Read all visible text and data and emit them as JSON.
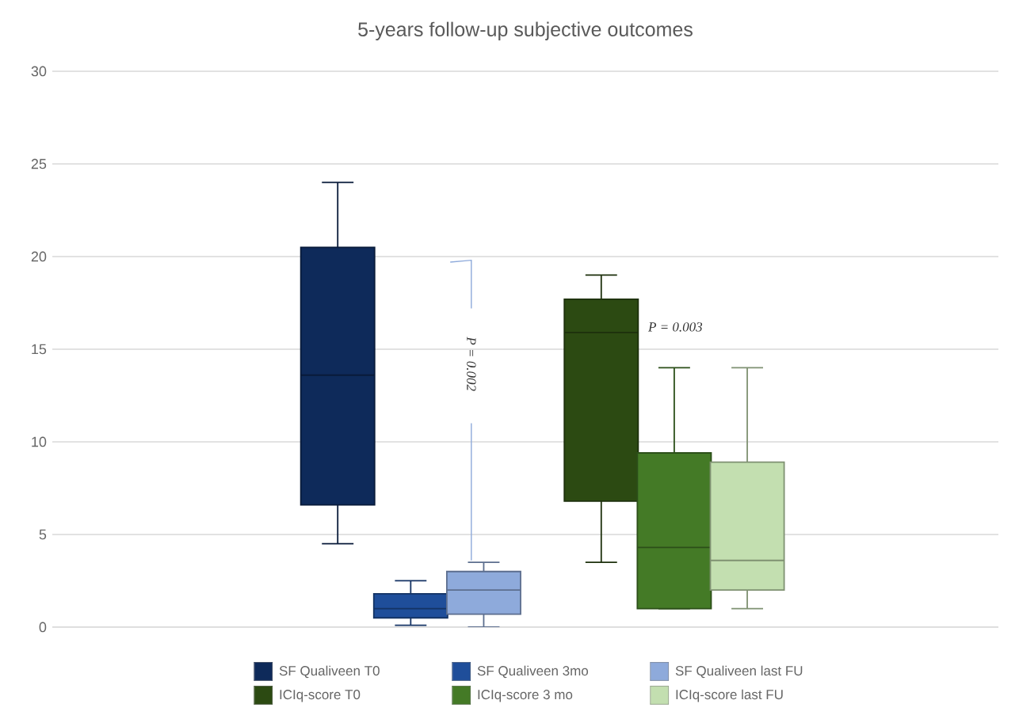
{
  "chart_data": {
    "type": "box",
    "title": "5-years follow-up subjective outcomes",
    "categories": [
      null,
      null
    ],
    "series": [
      {
        "name": "SF Qualiveen T0",
        "color": "#0e2a5a",
        "boxes": [
          {
            "low": 4.5,
            "q1": 6.6,
            "median": 13.6,
            "q3": 20.5,
            "high": 24
          },
          null
        ]
      },
      {
        "name": "SF Qualiveen 3mo",
        "color": "#1f4e9a",
        "boxes": [
          {
            "low": 0.1,
            "q1": 0.5,
            "median": 1,
            "q3": 1.8,
            "high": 2.5
          },
          null
        ]
      },
      {
        "name": "SF Qualiveen last FU",
        "color": "#8eaadb",
        "boxes": [
          {
            "low": 0,
            "q1": 0.7,
            "median": 2,
            "q3": 3,
            "high": 3.5
          },
          null
        ]
      },
      {
        "name": "ICIq-score T0",
        "color": "#2c4a12",
        "boxes": [
          null,
          {
            "low": 3.5,
            "q1": 6.8,
            "median": 15.9,
            "q3": 17.7,
            "high": 19
          }
        ]
      },
      {
        "name": "ICIq-score 3 mo",
        "color": "#447a26",
        "boxes": [
          null,
          {
            "low": 1,
            "q1": 1,
            "median": 4.3,
            "q3": 9.4,
            "high": 14
          }
        ]
      },
      {
        "name": "ICIq-score last FU",
        "color": "#c3dfb0",
        "boxes": [
          null,
          {
            "low": 1,
            "q1": 2,
            "median": 3.6,
            "q3": 8.9,
            "high": 14
          }
        ]
      }
    ],
    "ylim": [
      0,
      30
    ],
    "yticks": [
      0,
      5,
      10,
      15,
      20,
      25,
      30
    ],
    "grid": "y",
    "legend": "bottom",
    "annotations": [
      "P = 0.002",
      "P = 0.003"
    ]
  }
}
